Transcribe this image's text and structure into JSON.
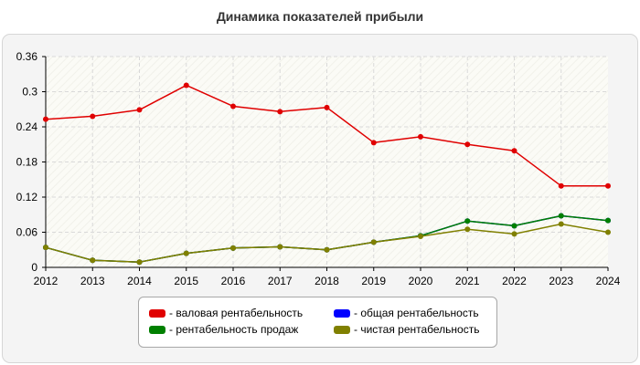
{
  "chart_data": {
    "type": "line",
    "title": "Динамика показателей прибыли",
    "x": [
      "2012",
      "2013",
      "2014",
      "2015",
      "2016",
      "2017",
      "2018",
      "2019",
      "2020",
      "2021",
      "2022",
      "2023",
      "2024"
    ],
    "yticks": [
      "0",
      "0.06",
      "0.12",
      "0.18",
      "0.24",
      "0.3",
      "0.36"
    ],
    "ylim": [
      0,
      0.36
    ],
    "grid": true,
    "legend_position": "bottom",
    "series": [
      {
        "name": "- валовая рентабельность",
        "color": "#e00000",
        "values": [
          0.253,
          0.258,
          0.269,
          0.311,
          0.275,
          0.266,
          0.273,
          0.213,
          0.223,
          0.21,
          0.199,
          0.139,
          0.139
        ]
      },
      {
        "name": "- общая рентабельность",
        "color": "#0000ff",
        "values": [
          0.034,
          0.012,
          0.009,
          0.024,
          0.033,
          0.035,
          0.03,
          0.043,
          0.054,
          0.079,
          0.071,
          0.088,
          0.08
        ]
      },
      {
        "name": "- рентабельность продаж",
        "color": "#008000",
        "values": [
          0.034,
          0.012,
          0.009,
          0.024,
          0.033,
          0.035,
          0.03,
          0.043,
          0.054,
          0.079,
          0.071,
          0.088,
          0.08
        ]
      },
      {
        "name": "- чистая рентабельность",
        "color": "#808000",
        "values": [
          0.034,
          0.012,
          0.009,
          0.024,
          0.033,
          0.035,
          0.03,
          0.043,
          0.053,
          0.065,
          0.057,
          0.074,
          0.06
        ]
      }
    ]
  }
}
